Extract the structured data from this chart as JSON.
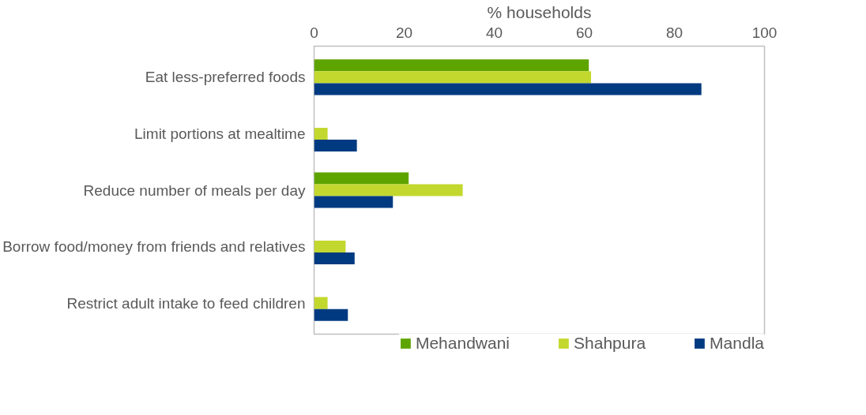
{
  "chart_data": {
    "type": "bar",
    "orientation": "horizontal",
    "xlabel": "% households",
    "categories": [
      "Eat less-preferred foods",
      "Limit portions at mealtime",
      "Reduce number of meals per day",
      "Borrow food/money from friends and relatives",
      "Restrict adult intake to feed children"
    ],
    "series": [
      {
        "name": "Mehandwani",
        "color": "#5ea400",
        "values": [
          61,
          0,
          21,
          0,
          0
        ]
      },
      {
        "name": "Shahpura",
        "color": "#c3d82e",
        "values": [
          61.5,
          3,
          33,
          7,
          3
        ]
      },
      {
        "name": "Mandla",
        "color": "#003a80",
        "values": [
          86,
          9.5,
          17.5,
          9,
          7.5
        ]
      }
    ],
    "xlim": [
      0,
      100
    ],
    "xticks": [
      0,
      20,
      40,
      60,
      80,
      100
    ],
    "grid": false,
    "legend": "bottom"
  }
}
